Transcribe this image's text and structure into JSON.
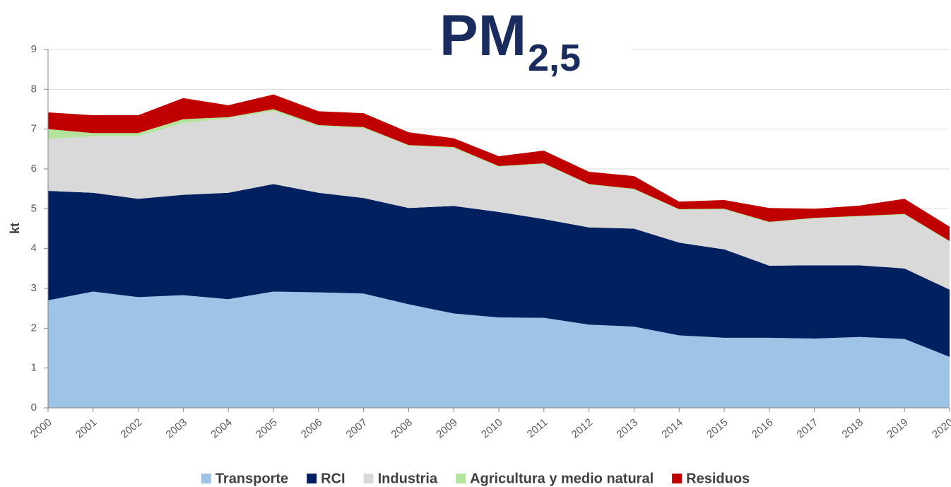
{
  "chart_data": {
    "type": "stacked_area",
    "title": "PM",
    "title_subscript": "2,5",
    "y_label": "kt",
    "categories": [
      "2000",
      "2001",
      "2002",
      "2003",
      "2004",
      "2005",
      "2006",
      "2007",
      "2008",
      "2009",
      "2010",
      "2011",
      "2012",
      "2013",
      "2014",
      "2015",
      "2016",
      "2017",
      "2018",
      "2019",
      "2020"
    ],
    "series": [
      {
        "name": "Transporte",
        "color": "#9dc3e6",
        "values": [
          2.7,
          2.92,
          2.78,
          2.83,
          2.73,
          2.92,
          2.9,
          2.87,
          2.6,
          2.37,
          2.27,
          2.26,
          2.09,
          2.04,
          1.82,
          1.76,
          1.76,
          1.74,
          1.78,
          1.73,
          1.28
        ]
      },
      {
        "name": "RCI",
        "color": "#002060",
        "values": [
          2.75,
          2.48,
          2.47,
          2.52,
          2.67,
          2.7,
          2.5,
          2.4,
          2.42,
          2.7,
          2.65,
          2.48,
          2.44,
          2.46,
          2.33,
          2.22,
          1.81,
          1.84,
          1.8,
          1.77,
          1.69
        ]
      },
      {
        "name": "Industria",
        "color": "#d9d9d9",
        "values": [
          1.3,
          1.42,
          1.57,
          1.8,
          1.87,
          1.83,
          1.67,
          1.75,
          1.56,
          1.45,
          1.13,
          1.38,
          1.07,
          0.98,
          0.82,
          1.0,
          1.08,
          1.17,
          1.22,
          1.35,
          1.2
        ]
      },
      {
        "name": "Agricultura y medio natural",
        "color": "#b4e49b",
        "values": [
          0.25,
          0.08,
          0.08,
          0.1,
          0.03,
          0.05,
          0.03,
          0.03,
          0.02,
          0.03,
          0.02,
          0.02,
          0.02,
          0.02,
          0.02,
          0.02,
          0.02,
          0.02,
          0.02,
          0.02,
          0.02
        ]
      },
      {
        "name": "Residuos",
        "color": "#c00000",
        "values": [
          0.42,
          0.45,
          0.45,
          0.53,
          0.3,
          0.37,
          0.35,
          0.35,
          0.32,
          0.22,
          0.25,
          0.32,
          0.31,
          0.32,
          0.19,
          0.22,
          0.35,
          0.23,
          0.26,
          0.38,
          0.36
        ]
      }
    ],
    "ylim": [
      0,
      9
    ],
    "yticks": [
      0,
      1,
      2,
      3,
      4,
      5,
      6,
      7,
      8,
      9
    ],
    "grid": true,
    "legend": "bottom"
  }
}
